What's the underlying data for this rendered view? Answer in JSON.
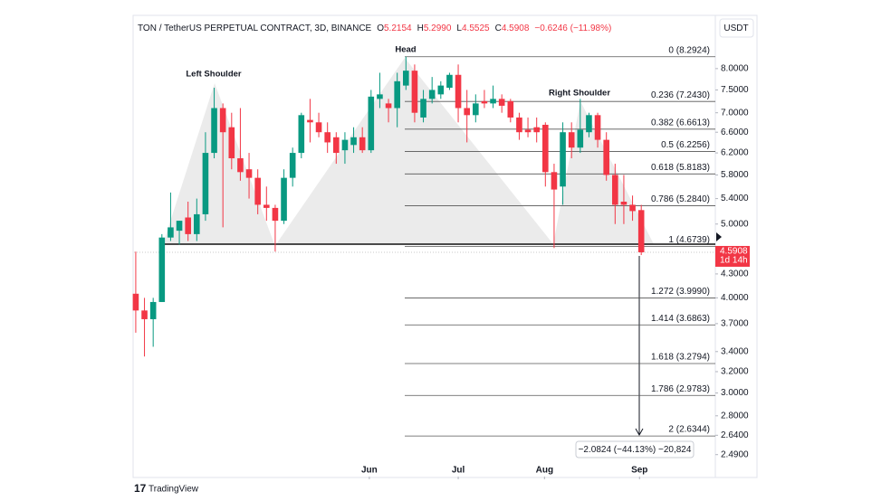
{
  "header": {
    "symbol": "TON / TetherUS PERPETUAL CONTRACT, 3D, BINANCE",
    "open_label": "O",
    "open": "5.2154",
    "high_label": "H",
    "high": "5.2990",
    "low_label": "L",
    "low": "4.5525",
    "close_label": "C",
    "close": "4.5908",
    "change": "−0.6246 (−11.98%)"
  },
  "currency": "USDT",
  "logo": "TradingView",
  "chart_data": {
    "type": "candlestick",
    "up_color": "#089981",
    "down_color": "#f23645",
    "log_scale": true,
    "open": [
      4.05,
      3.85,
      3.75,
      3.95,
      4.8,
      4.9,
      5.1,
      4.85,
      5.15,
      6.2,
      7.1,
      6.7,
      6.1,
      5.9,
      5.75,
      5.3,
      5.25,
      5.05,
      5.75,
      6.2,
      6.85,
      6.8,
      6.6,
      6.5,
      6.25,
      6.35,
      6.5,
      6.25,
      7.3,
      7.2,
      7.1,
      7.6,
      7.95,
      6.9,
      7.3,
      7.4,
      7.55,
      7.85,
      7.1,
      6.95,
      7.25,
      7.2,
      7.3,
      7.25,
      6.9,
      6.65,
      6.7,
      6.75,
      5.85,
      5.6,
      6.6,
      6.3,
      6.6,
      6.95,
      6.45,
      5.8,
      5.35,
      5.3,
      5.2154
    ],
    "high": [
      4.6,
      4.0,
      4.0,
      4.85,
      5.5,
      5.05,
      5.35,
      5.4,
      6.6,
      7.55,
      7.2,
      7.0,
      7.1,
      6.2,
      5.9,
      5.6,
      5.3,
      5.9,
      6.3,
      7.0,
      7.3,
      7.0,
      6.8,
      6.6,
      6.6,
      6.7,
      6.7,
      7.5,
      7.9,
      7.3,
      7.9,
      8.2924,
      8.1,
      7.5,
      7.8,
      7.7,
      7.9,
      8.1,
      7.5,
      7.4,
      7.5,
      7.6,
      7.4,
      7.3,
      7.0,
      6.9,
      6.9,
      6.8,
      6.0,
      6.8,
      6.8,
      7.3,
      7.0,
      7.0,
      6.6,
      6.0,
      5.8,
      5.45,
      5.299
    ],
    "low": [
      3.6,
      3.35,
      3.45,
      3.95,
      4.75,
      4.7,
      4.75,
      4.75,
      5.05,
      6.1,
      4.95,
      5.9,
      5.7,
      5.4,
      5.15,
      5.05,
      4.6,
      5.0,
      5.6,
      6.1,
      6.4,
      6.5,
      6.2,
      6.0,
      6.0,
      6.2,
      6.2,
      6.2,
      7.1,
      6.8,
      6.7,
      7.5,
      6.8,
      6.8,
      7.2,
      7.3,
      7.5,
      6.8,
      6.4,
      6.8,
      7.1,
      7.1,
      7.0,
      6.8,
      6.45,
      6.5,
      6.4,
      5.6,
      4.65,
      5.3,
      6.1,
      6.2,
      6.5,
      6.3,
      5.7,
      5.0,
      5.0,
      5.05,
      4.5525
    ],
    "close": [
      3.85,
      3.75,
      3.95,
      4.8,
      4.95,
      5.05,
      4.85,
      5.15,
      6.2,
      7.1,
      6.6,
      6.1,
      5.85,
      5.75,
      5.3,
      5.25,
      5.05,
      5.75,
      6.2,
      6.95,
      6.8,
      6.6,
      6.4,
      6.2,
      6.45,
      6.5,
      6.25,
      7.35,
      7.4,
      7.1,
      7.7,
      7.95,
      7.0,
      7.3,
      7.5,
      7.6,
      7.85,
      7.1,
      6.95,
      7.2,
      7.2,
      7.3,
      7.15,
      6.9,
      6.6,
      6.6,
      6.6,
      5.85,
      5.55,
      6.6,
      6.3,
      6.65,
      6.95,
      6.45,
      5.8,
      5.3,
      5.3,
      5.2,
      4.5908
    ],
    "xlim": [
      -0.2,
      66.5
    ],
    "xticks": [
      {
        "value": 26.8,
        "label": "Jun"
      },
      {
        "value": 37,
        "label": "Jul"
      },
      {
        "value": 46.9,
        "label": "Aug"
      },
      {
        "value": 57.8,
        "label": "Sep"
      }
    ],
    "ylim": [
      2.33,
      9.32
    ],
    "yticks": [
      {
        "value": 8,
        "label": "8.0000"
      },
      {
        "value": 7.5,
        "label": "7.5000"
      },
      {
        "value": 7,
        "label": "7.0000"
      },
      {
        "value": 6.6,
        "label": "6.6000"
      },
      {
        "value": 6.2,
        "label": "6.2000"
      },
      {
        "value": 5.8,
        "label": "5.8000"
      },
      {
        "value": 5.4,
        "label": "5.4000"
      },
      {
        "value": 5,
        "label": "5.0000"
      },
      {
        "value": 4.3,
        "label": "4.3000"
      },
      {
        "value": 4,
        "label": "4.0000"
      },
      {
        "value": 3.7,
        "label": "3.7000"
      },
      {
        "value": 3.4,
        "label": "3.4000"
      },
      {
        "value": 3.2,
        "label": "3.2000"
      },
      {
        "value": 3,
        "label": "3.0000"
      },
      {
        "value": 2.8,
        "label": "2.8000"
      },
      {
        "value": 2.64,
        "label": "2.6400"
      },
      {
        "value": 2.49,
        "label": "2.4900"
      }
    ],
    "fib_levels": [
      {
        "value": 8.2924,
        "label": "0 (8.2924)"
      },
      {
        "value": 7.243,
        "label": "0.236 (7.2430)"
      },
      {
        "value": 6.6613,
        "label": "0.382 (6.6613)"
      },
      {
        "value": 6.2256,
        "label": "0.5 (6.2256)"
      },
      {
        "value": 5.8183,
        "label": "0.618 (5.8183)"
      },
      {
        "value": 5.284,
        "label": "0.786 (5.2840)"
      },
      {
        "value": 4.6739,
        "label": "1 (4.6739)"
      },
      {
        "value": 3.999,
        "label": "1.272 (3.9990)"
      },
      {
        "value": 3.6863,
        "label": "1.414 (3.6863)"
      },
      {
        "value": 3.2794,
        "label": "1.618 (3.2794)"
      },
      {
        "value": 2.9783,
        "label": "1.786 (2.9783)"
      },
      {
        "value": 2.6344,
        "label": "2 (2.6344)"
      }
    ],
    "annotations": [
      "Left Shoulder",
      "Head",
      "Right Shoulder"
    ],
    "last_price": {
      "value": 4.5908,
      "label": "4.5908",
      "countdown": "1d 14h"
    },
    "measure": "−2.0824 (−44.13%) −20,824"
  }
}
